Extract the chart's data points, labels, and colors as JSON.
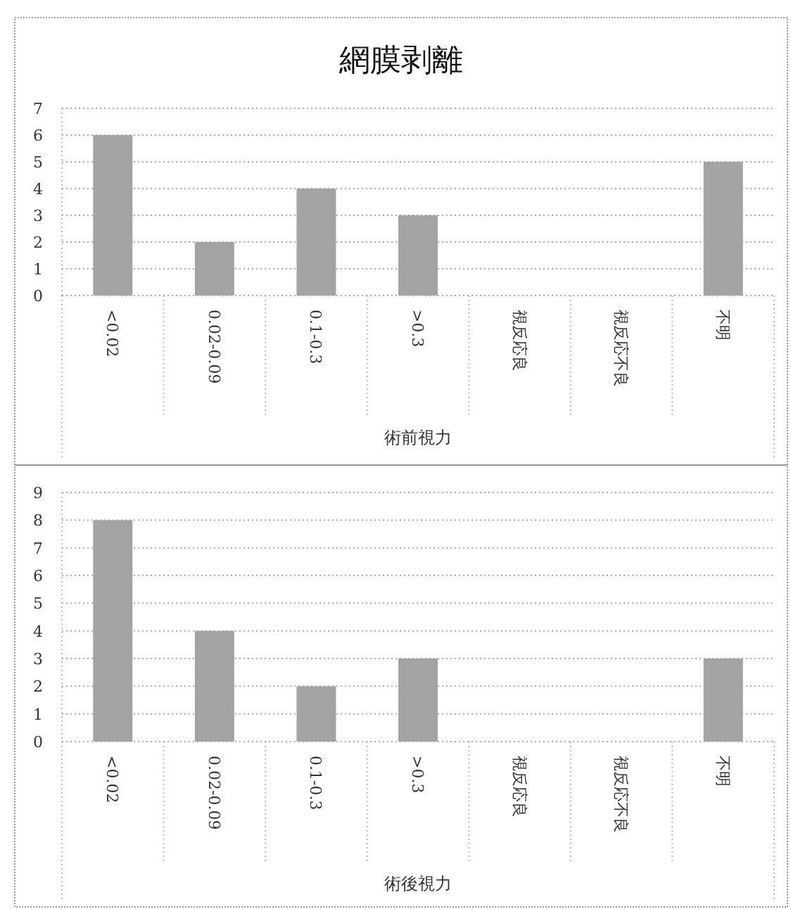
{
  "chart_data": [
    {
      "type": "bar",
      "title": "網膜剥離",
      "categories": [
        "<0.02",
        "0.02-0.09",
        "0.1-0.3",
        ">0.3",
        "視反応良",
        "視反応不良",
        "不明"
      ],
      "values": [
        6,
        2,
        4,
        3,
        0,
        0,
        5
      ],
      "color": "#a3a3a3",
      "xlabel": "術前視力",
      "ylim": [
        0,
        7
      ],
      "yticks": [
        0,
        1,
        2,
        3,
        4,
        5,
        6,
        7
      ],
      "grid": "y"
    },
    {
      "type": "bar",
      "categories": [
        "<0.02",
        "0.02-0.09",
        "0.1-0.3",
        ">0.3",
        "視反応良",
        "視反応不良",
        "不明"
      ],
      "values": [
        8,
        4,
        2,
        3,
        0,
        0,
        3
      ],
      "color": "#a3a3a3",
      "xlabel": "術後視力",
      "ylim": [
        0,
        9
      ],
      "yticks": [
        0,
        1,
        2,
        3,
        4,
        5,
        6,
        7,
        8,
        9
      ],
      "grid": "y"
    }
  ]
}
